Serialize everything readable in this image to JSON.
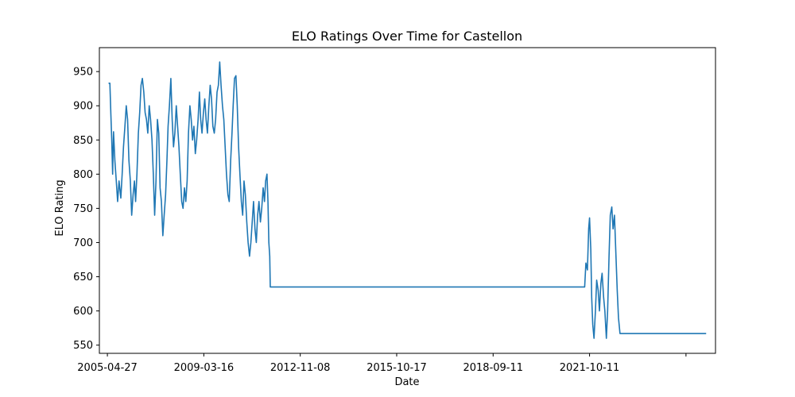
{
  "chart_data": {
    "type": "line",
    "title": "ELO Ratings Over Time for Castellon",
    "xlabel": "Date",
    "ylabel": "ELO Rating",
    "x_ticks": [
      "2005-04-27",
      "2009-03-16",
      "2012-11-08",
      "2015-10-17",
      "2018-09-11",
      "2021-10-11",
      ""
    ],
    "y_ticks": [
      550,
      600,
      650,
      700,
      750,
      800,
      850,
      900,
      950
    ],
    "xlim": [
      "2005-01-27",
      "2024-01-10"
    ],
    "ylim": [
      538,
      985
    ],
    "grid": false,
    "series_color": "#1f77b4",
    "series": [
      {
        "points": [
          [
            "2005-05-10",
            933
          ],
          [
            "2005-05-25",
            933
          ],
          [
            "2005-06-05",
            888
          ],
          [
            "2005-06-15",
            850
          ],
          [
            "2005-06-25",
            800
          ],
          [
            "2005-07-05",
            862
          ],
          [
            "2005-07-20",
            820
          ],
          [
            "2005-08-05",
            790
          ],
          [
            "2005-08-20",
            760
          ],
          [
            "2005-09-05",
            790
          ],
          [
            "2005-09-25",
            765
          ],
          [
            "2005-10-10",
            800
          ],
          [
            "2005-10-25",
            840
          ],
          [
            "2005-11-10",
            870
          ],
          [
            "2005-11-25",
            900
          ],
          [
            "2005-12-10",
            880
          ],
          [
            "2005-12-25",
            820
          ],
          [
            "2006-01-10",
            790
          ],
          [
            "2006-01-25",
            740
          ],
          [
            "2006-02-10",
            770
          ],
          [
            "2006-02-25",
            790
          ],
          [
            "2006-03-10",
            760
          ],
          [
            "2006-03-25",
            800
          ],
          [
            "2006-04-10",
            860
          ],
          [
            "2006-04-25",
            890
          ],
          [
            "2006-05-10",
            930
          ],
          [
            "2006-05-25",
            940
          ],
          [
            "2006-06-10",
            920
          ],
          [
            "2006-06-25",
            890
          ],
          [
            "2006-07-10",
            880
          ],
          [
            "2006-07-25",
            860
          ],
          [
            "2006-08-10",
            900
          ],
          [
            "2006-08-25",
            880
          ],
          [
            "2006-09-10",
            850
          ],
          [
            "2006-09-25",
            800
          ],
          [
            "2006-10-10",
            740
          ],
          [
            "2006-10-25",
            790
          ],
          [
            "2006-11-10",
            880
          ],
          [
            "2006-11-25",
            860
          ],
          [
            "2006-12-10",
            780
          ],
          [
            "2006-12-25",
            760
          ],
          [
            "2007-01-10",
            710
          ],
          [
            "2007-01-25",
            740
          ],
          [
            "2007-02-10",
            770
          ],
          [
            "2007-02-25",
            820
          ],
          [
            "2007-03-10",
            870
          ],
          [
            "2007-03-25",
            900
          ],
          [
            "2007-04-10",
            940
          ],
          [
            "2007-04-25",
            880
          ],
          [
            "2007-05-10",
            840
          ],
          [
            "2007-05-25",
            860
          ],
          [
            "2007-06-10",
            900
          ],
          [
            "2007-06-25",
            870
          ],
          [
            "2007-07-10",
            840
          ],
          [
            "2007-07-25",
            800
          ],
          [
            "2007-08-10",
            760
          ],
          [
            "2007-08-25",
            750
          ],
          [
            "2007-09-10",
            780
          ],
          [
            "2007-09-25",
            760
          ],
          [
            "2007-10-10",
            790
          ],
          [
            "2007-10-25",
            860
          ],
          [
            "2007-11-10",
            900
          ],
          [
            "2007-11-25",
            880
          ],
          [
            "2007-12-10",
            850
          ],
          [
            "2007-12-25",
            870
          ],
          [
            "2008-01-10",
            830
          ],
          [
            "2008-01-25",
            850
          ],
          [
            "2008-02-10",
            880
          ],
          [
            "2008-02-25",
            920
          ],
          [
            "2008-03-10",
            880
          ],
          [
            "2008-03-25",
            860
          ],
          [
            "2008-04-10",
            890
          ],
          [
            "2008-04-25",
            910
          ],
          [
            "2008-05-10",
            880
          ],
          [
            "2008-05-25",
            860
          ],
          [
            "2008-06-10",
            900
          ],
          [
            "2008-06-25",
            930
          ],
          [
            "2008-07-10",
            910
          ],
          [
            "2008-07-25",
            870
          ],
          [
            "2008-08-10",
            860
          ],
          [
            "2008-08-25",
            880
          ],
          [
            "2008-09-10",
            920
          ],
          [
            "2008-09-25",
            930
          ],
          [
            "2008-10-10",
            964
          ],
          [
            "2008-10-25",
            930
          ],
          [
            "2008-11-10",
            900
          ],
          [
            "2008-11-25",
            880
          ],
          [
            "2008-12-10",
            840
          ],
          [
            "2008-12-25",
            800
          ],
          [
            "2009-01-10",
            770
          ],
          [
            "2009-01-25",
            760
          ],
          [
            "2009-02-10",
            820
          ],
          [
            "2009-02-25",
            860
          ],
          [
            "2009-03-10",
            900
          ],
          [
            "2009-03-25",
            940
          ],
          [
            "2009-04-10",
            944
          ],
          [
            "2009-04-25",
            900
          ],
          [
            "2009-05-10",
            840
          ],
          [
            "2009-05-25",
            800
          ],
          [
            "2009-06-10",
            760
          ],
          [
            "2009-06-25",
            740
          ],
          [
            "2009-07-10",
            790
          ],
          [
            "2009-07-25",
            770
          ],
          [
            "2009-08-10",
            730
          ],
          [
            "2009-08-25",
            700
          ],
          [
            "2009-09-10",
            680
          ],
          [
            "2009-09-25",
            700
          ],
          [
            "2009-10-10",
            730
          ],
          [
            "2009-10-25",
            760
          ],
          [
            "2009-11-10",
            720
          ],
          [
            "2009-11-25",
            700
          ],
          [
            "2009-12-10",
            740
          ],
          [
            "2009-12-25",
            760
          ],
          [
            "2010-01-10",
            730
          ],
          [
            "2010-01-25",
            750
          ],
          [
            "2010-02-10",
            780
          ],
          [
            "2010-02-25",
            760
          ],
          [
            "2010-03-10",
            790
          ],
          [
            "2010-03-25",
            800
          ],
          [
            "2010-04-05",
            760
          ],
          [
            "2010-04-15",
            700
          ],
          [
            "2010-04-25",
            680
          ],
          [
            "2010-05-01",
            635
          ],
          [
            "2020-01-01",
            635
          ],
          [
            "2020-01-15",
            670
          ],
          [
            "2020-02-01",
            660
          ],
          [
            "2020-02-15",
            720
          ],
          [
            "2020-02-25",
            736
          ],
          [
            "2020-03-10",
            690
          ],
          [
            "2020-03-20",
            620
          ],
          [
            "2020-04-01",
            580
          ],
          [
            "2020-04-15",
            560
          ],
          [
            "2020-05-01",
            600
          ],
          [
            "2020-05-15",
            645
          ],
          [
            "2020-06-01",
            630
          ],
          [
            "2020-06-15",
            600
          ],
          [
            "2020-07-01",
            640
          ],
          [
            "2020-07-15",
            655
          ],
          [
            "2020-08-01",
            620
          ],
          [
            "2020-08-15",
            600
          ],
          [
            "2020-09-01",
            560
          ],
          [
            "2020-09-15",
            600
          ],
          [
            "2020-10-01",
            680
          ],
          [
            "2020-10-15",
            740
          ],
          [
            "2020-11-01",
            752
          ],
          [
            "2020-11-15",
            720
          ],
          [
            "2020-12-01",
            740
          ],
          [
            "2020-12-15",
            690
          ],
          [
            "2021-01-01",
            630
          ],
          [
            "2021-01-15",
            590
          ],
          [
            "2021-02-01",
            567
          ],
          [
            "2023-09-27",
            567
          ]
        ]
      }
    ]
  }
}
